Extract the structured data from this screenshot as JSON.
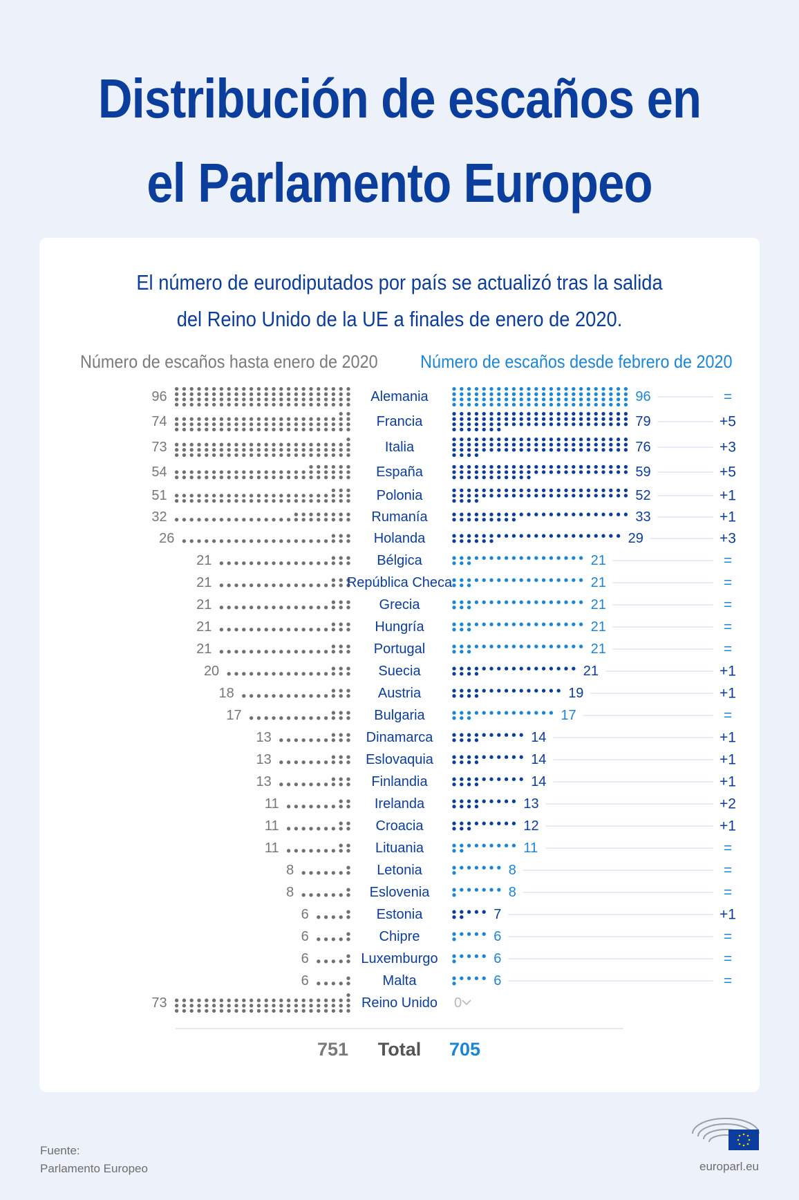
{
  "title_line1": "Distribución de escaños en",
  "title_line2": "el Parlamento Europeo",
  "subtitle_line1": "El número de eurodiputados por país se actualizó tras la salida",
  "subtitle_line2": "del Reino Unido de la UE a finales de enero de 2020.",
  "source_label": "Fuente:",
  "source_value": "Parlamento Europeo",
  "site": "europarl.eu",
  "colors": {
    "background": "#edf1f9",
    "title": "#0a3d9c",
    "gray_dots": "#707070",
    "blue_dark": "#0a3d9c",
    "blue_light": "#1a86d6"
  },
  "chart_data": {
    "type": "dot-matrix",
    "left_header": "Número de escaños hasta enero de 2020",
    "right_header": "Número de escaños desde febrero de 2020",
    "total_label": "Total",
    "total_before": 751,
    "total_after": 705,
    "rows": [
      {
        "country": "Alemania",
        "before": 96,
        "after": 96,
        "change": "="
      },
      {
        "country": "Francia",
        "before": 74,
        "after": 79,
        "change": "+5"
      },
      {
        "country": "Italia",
        "before": 73,
        "after": 76,
        "change": "+3"
      },
      {
        "country": "España",
        "before": 54,
        "after": 59,
        "change": "+5"
      },
      {
        "country": "Polonia",
        "before": 51,
        "after": 52,
        "change": "+1"
      },
      {
        "country": "Rumanía",
        "before": 32,
        "after": 33,
        "change": "+1"
      },
      {
        "country": "Holanda",
        "before": 26,
        "after": 29,
        "change": "+3"
      },
      {
        "country": "Bélgica",
        "before": 21,
        "after": 21,
        "change": "="
      },
      {
        "country": "República Checa",
        "before": 21,
        "after": 21,
        "change": "="
      },
      {
        "country": "Grecia",
        "before": 21,
        "after": 21,
        "change": "="
      },
      {
        "country": "Hungría",
        "before": 21,
        "after": 21,
        "change": "="
      },
      {
        "country": "Portugal",
        "before": 21,
        "after": 21,
        "change": "="
      },
      {
        "country": "Suecia",
        "before": 20,
        "after": 21,
        "change": "+1"
      },
      {
        "country": "Austria",
        "before": 18,
        "after": 19,
        "change": "+1"
      },
      {
        "country": "Bulgaria",
        "before": 17,
        "after": 17,
        "change": "="
      },
      {
        "country": "Dinamarca",
        "before": 13,
        "after": 14,
        "change": "+1"
      },
      {
        "country": "Eslovaquia",
        "before": 13,
        "after": 14,
        "change": "+1"
      },
      {
        "country": "Finlandia",
        "before": 13,
        "after": 14,
        "change": "+1"
      },
      {
        "country": "Irelanda",
        "before": 11,
        "after": 13,
        "change": "+2"
      },
      {
        "country": "Croacia",
        "before": 11,
        "after": 12,
        "change": "+1"
      },
      {
        "country": "Lituania",
        "before": 11,
        "after": 11,
        "change": "="
      },
      {
        "country": "Letonia",
        "before": 8,
        "after": 8,
        "change": "="
      },
      {
        "country": "Eslovenia",
        "before": 8,
        "after": 8,
        "change": "="
      },
      {
        "country": "Estonia",
        "before": 6,
        "after": 7,
        "change": "+1"
      },
      {
        "country": "Chipre",
        "before": 6,
        "after": 6,
        "change": "="
      },
      {
        "country": "Luxemburgo",
        "before": 6,
        "after": 6,
        "change": "="
      },
      {
        "country": "Malta",
        "before": 6,
        "after": 6,
        "change": "="
      },
      {
        "country": "Reino Unido",
        "before": 73,
        "after": 0,
        "change": ""
      }
    ]
  }
}
